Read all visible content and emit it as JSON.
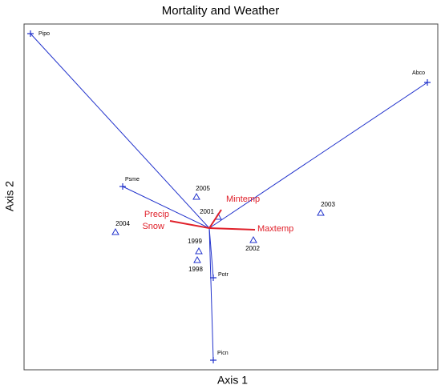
{
  "title": "Mortality and Weather",
  "x_label": "Axis 1",
  "y_label": "Axis 2",
  "species": [
    "Pipo",
    "Abco",
    "Psme",
    "Potr",
    "Picn"
  ],
  "years": [
    "2005",
    "2001",
    "2003",
    "2004",
    "2002",
    "1999",
    "1998"
  ],
  "variables": [
    "Mintemp",
    "Maxtemp",
    "Precip",
    "Snow"
  ]
}
